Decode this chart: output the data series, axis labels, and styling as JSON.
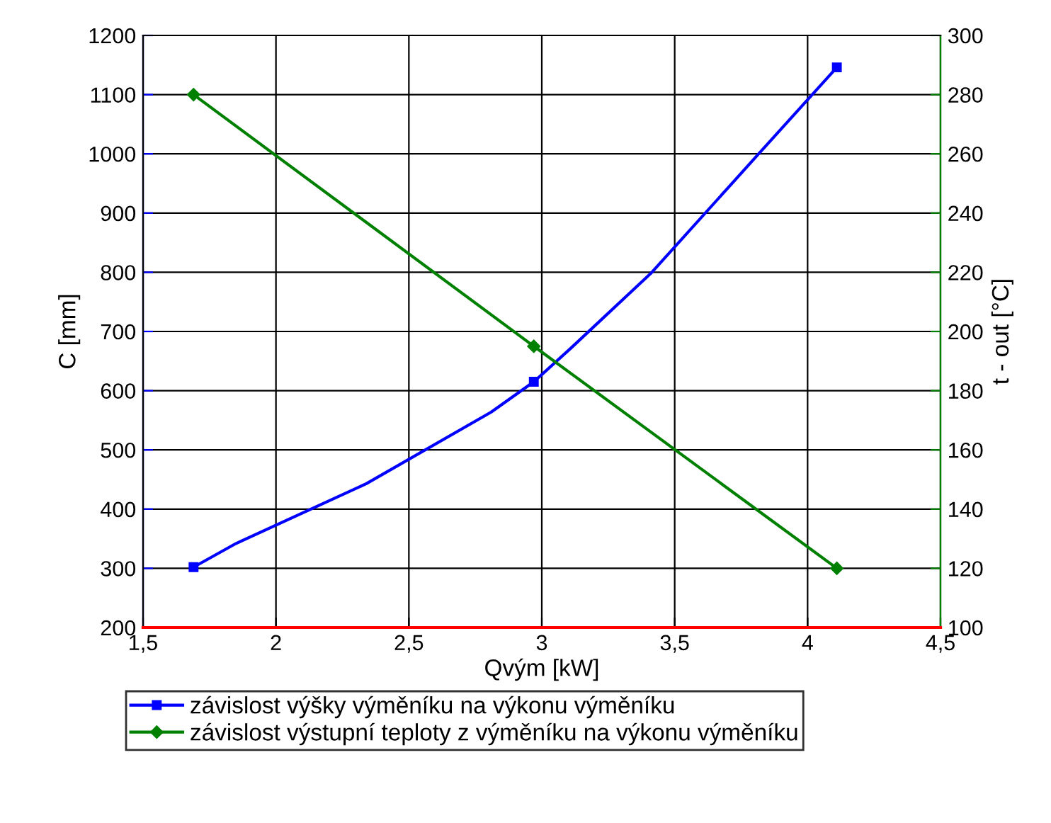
{
  "chart_data": {
    "type": "line",
    "xlabel": "Qvým [kW]",
    "ylabel": "C [mm]",
    "y2label": "t - out [°C]",
    "xlim": [
      1.5,
      4.5
    ],
    "xticks": [
      {
        "value": 1.5,
        "label": "1,5"
      },
      2,
      {
        "value": 2.5,
        "label": "2,5"
      },
      3,
      {
        "value": 3.5,
        "label": "3,5"
      },
      4,
      {
        "value": 4.5,
        "label": "4,5"
      }
    ],
    "ylim": [
      200,
      1200
    ],
    "yticks": [
      200,
      300,
      400,
      500,
      600,
      700,
      800,
      900,
      1000,
      1100,
      1200
    ],
    "y2lim": [
      100,
      300
    ],
    "y2ticks": [
      100,
      120,
      140,
      160,
      180,
      200,
      220,
      240,
      260,
      280,
      300
    ],
    "series": [
      {
        "name": "závislost výšky výměníku na výkonu výměníku",
        "color": "#0000ff",
        "x": [
          1.69,
          1.85,
          2.34,
          2.81,
          2.97,
          3.11,
          3.41,
          3.81,
          4.11
        ],
        "values": [
          302,
          342,
          443,
          564,
          615,
          672,
          798,
          997,
          1146
        ],
        "marker": "none"
      },
      {
        "type": "scatter",
        "color": "#0000ff",
        "x": [
          1.69,
          2.97,
          4.11
        ],
        "values": [
          302,
          615,
          1146
        ],
        "marker": "square"
      },
      {
        "name": "závislost výstupní teploty z výměníku na výkonu výměníku",
        "color": "#008000",
        "x": [
          1.69,
          2.97,
          4.11
        ],
        "values": [
          280,
          195,
          120
        ],
        "axis": "y2",
        "marker": "diamond"
      }
    ],
    "grid": true,
    "legend": "bottom",
    "line_style": "solid"
  }
}
